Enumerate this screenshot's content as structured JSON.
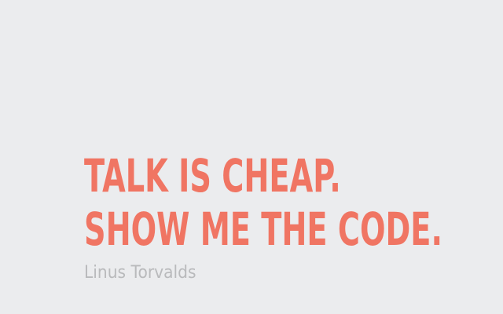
{
  "quote": {
    "line1": "TALK IS CHEAP.",
    "line2": "SHOW ME THE CODE."
  },
  "author": "Linus Torvalds",
  "colors": {
    "background": "#ebecee",
    "quote": "#f07563",
    "author": "#b9babc"
  }
}
